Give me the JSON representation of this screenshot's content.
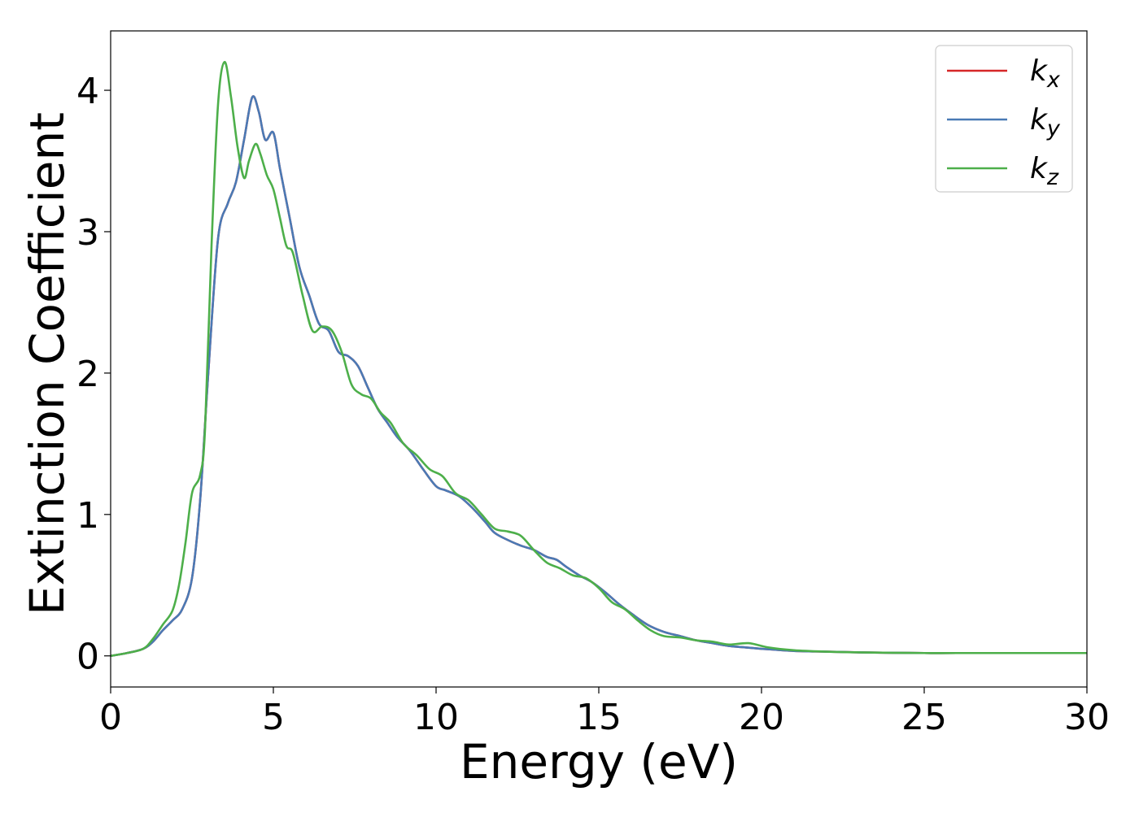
{
  "chart_data": {
    "type": "line",
    "xlabel": "Energy (eV)",
    "ylabel": "Extinction Coefficient",
    "xlim": [
      0,
      30
    ],
    "ylim": [
      -0.22,
      4.42
    ],
    "xticks": [
      0,
      5,
      10,
      15,
      20,
      25,
      30
    ],
    "yticks": [
      0,
      1,
      2,
      3,
      4
    ],
    "grid": false,
    "legend": {
      "position": "top-right"
    },
    "series": [
      {
        "key": "kx",
        "name_base": "k",
        "name_sub": "x",
        "color": "#d62728",
        "x": [
          0,
          0.5,
          1.0,
          1.3,
          1.6,
          1.9,
          2.2,
          2.5,
          2.75,
          3.0,
          3.3,
          3.6,
          3.85,
          4.1,
          4.35,
          4.55,
          4.75,
          5.0,
          5.2,
          5.5,
          5.8,
          6.1,
          6.4,
          6.7,
          7.0,
          7.3,
          7.6,
          7.9,
          8.2,
          8.5,
          8.8,
          9.2,
          9.6,
          10.0,
          10.3,
          10.7,
          11.1,
          11.5,
          11.8,
          12.2,
          12.6,
          13.0,
          13.4,
          13.7,
          14.0,
          14.4,
          14.8,
          15.2,
          15.6,
          16.0,
          16.5,
          17.0,
          17.5,
          18.0,
          18.5,
          19.0,
          19.5,
          20.0,
          21.0,
          22.0,
          23.0,
          24.0,
          25.0,
          26.0,
          27.0,
          28.0,
          29.0,
          30.0
        ],
        "values": [
          0.0,
          0.02,
          0.05,
          0.1,
          0.18,
          0.25,
          0.33,
          0.55,
          1.1,
          2.0,
          2.95,
          3.2,
          3.35,
          3.65,
          3.95,
          3.85,
          3.65,
          3.7,
          3.45,
          3.1,
          2.75,
          2.55,
          2.35,
          2.3,
          2.15,
          2.12,
          2.05,
          1.9,
          1.75,
          1.65,
          1.55,
          1.45,
          1.32,
          1.2,
          1.17,
          1.13,
          1.05,
          0.95,
          0.87,
          0.82,
          0.78,
          0.75,
          0.7,
          0.68,
          0.63,
          0.57,
          0.52,
          0.45,
          0.37,
          0.3,
          0.22,
          0.17,
          0.14,
          0.11,
          0.09,
          0.07,
          0.06,
          0.05,
          0.035,
          0.03,
          0.025,
          0.022,
          0.02,
          0.02,
          0.02,
          0.02,
          0.02,
          0.02
        ]
      },
      {
        "key": "ky",
        "name_base": "k",
        "name_sub": "y",
        "color": "#4a7ab5",
        "x": [
          0,
          0.5,
          1.0,
          1.3,
          1.6,
          1.9,
          2.2,
          2.5,
          2.75,
          3.0,
          3.3,
          3.6,
          3.85,
          4.1,
          4.35,
          4.55,
          4.75,
          5.0,
          5.2,
          5.5,
          5.8,
          6.1,
          6.4,
          6.7,
          7.0,
          7.3,
          7.6,
          7.9,
          8.2,
          8.5,
          8.8,
          9.2,
          9.6,
          10.0,
          10.3,
          10.7,
          11.1,
          11.5,
          11.8,
          12.2,
          12.6,
          13.0,
          13.4,
          13.7,
          14.0,
          14.4,
          14.8,
          15.2,
          15.6,
          16.0,
          16.5,
          17.0,
          17.5,
          18.0,
          18.5,
          19.0,
          19.5,
          20.0,
          21.0,
          22.0,
          23.0,
          24.0,
          25.0,
          26.0,
          27.0,
          28.0,
          29.0,
          30.0
        ],
        "values": [
          0.0,
          0.02,
          0.05,
          0.1,
          0.18,
          0.25,
          0.33,
          0.55,
          1.1,
          2.0,
          2.95,
          3.2,
          3.35,
          3.65,
          3.95,
          3.85,
          3.65,
          3.7,
          3.45,
          3.1,
          2.75,
          2.55,
          2.35,
          2.3,
          2.15,
          2.12,
          2.05,
          1.9,
          1.75,
          1.65,
          1.55,
          1.45,
          1.32,
          1.2,
          1.17,
          1.13,
          1.05,
          0.95,
          0.87,
          0.82,
          0.78,
          0.75,
          0.7,
          0.68,
          0.63,
          0.57,
          0.52,
          0.45,
          0.37,
          0.3,
          0.22,
          0.17,
          0.14,
          0.11,
          0.09,
          0.07,
          0.06,
          0.05,
          0.035,
          0.03,
          0.025,
          0.022,
          0.02,
          0.02,
          0.02,
          0.02,
          0.02,
          0.02
        ]
      },
      {
        "key": "kz",
        "name_base": "k",
        "name_sub": "z",
        "color": "#4daf4a",
        "x": [
          0,
          0.5,
          1.0,
          1.3,
          1.6,
          1.9,
          2.1,
          2.3,
          2.5,
          2.75,
          2.9,
          3.1,
          3.3,
          3.5,
          3.7,
          3.9,
          4.1,
          4.25,
          4.45,
          4.6,
          4.8,
          5.0,
          5.2,
          5.4,
          5.6,
          5.9,
          6.2,
          6.5,
          6.8,
          7.1,
          7.4,
          7.7,
          8.0,
          8.3,
          8.6,
          9.0,
          9.4,
          9.8,
          10.2,
          10.6,
          11.0,
          11.4,
          11.8,
          12.2,
          12.6,
          13.0,
          13.4,
          13.8,
          14.2,
          14.6,
          15.0,
          15.4,
          15.8,
          16.2,
          16.6,
          17.0,
          17.5,
          18.0,
          18.5,
          19.0,
          19.6,
          20.2,
          21.0,
          22.0,
          23.0,
          24.0,
          25.0,
          26.0,
          27.0,
          28.0,
          29.0,
          30.0
        ],
        "values": [
          0.0,
          0.02,
          0.05,
          0.12,
          0.22,
          0.32,
          0.5,
          0.8,
          1.15,
          1.28,
          1.6,
          2.9,
          3.9,
          4.2,
          3.95,
          3.6,
          3.38,
          3.5,
          3.62,
          3.55,
          3.4,
          3.3,
          3.1,
          2.9,
          2.85,
          2.55,
          2.3,
          2.33,
          2.3,
          2.15,
          1.92,
          1.85,
          1.82,
          1.72,
          1.65,
          1.5,
          1.42,
          1.32,
          1.27,
          1.15,
          1.1,
          1.0,
          0.9,
          0.88,
          0.85,
          0.75,
          0.66,
          0.62,
          0.57,
          0.55,
          0.48,
          0.38,
          0.33,
          0.25,
          0.18,
          0.14,
          0.13,
          0.11,
          0.1,
          0.08,
          0.09,
          0.06,
          0.04,
          0.03,
          0.025,
          0.022,
          0.02,
          0.02,
          0.02,
          0.02,
          0.02,
          0.02
        ]
      }
    ]
  }
}
